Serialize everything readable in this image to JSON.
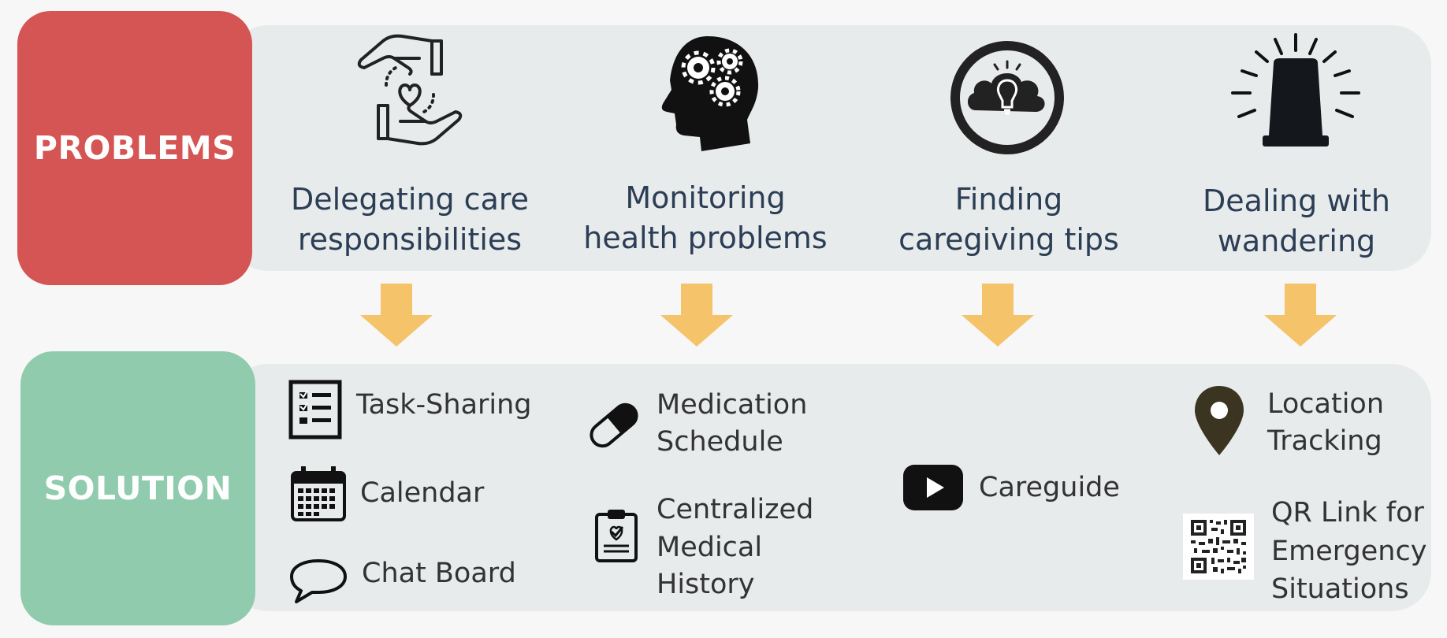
{
  "labels": {
    "problems": "PROBLEMS",
    "solution": "SOLUTION"
  },
  "problems": [
    {
      "line1": "Delegating care",
      "line2": "responsibilities",
      "icon": "caring-hands-heart-icon"
    },
    {
      "line1": "Monitoring",
      "line2": "health problems",
      "icon": "head-gears-icon"
    },
    {
      "line1": "Finding",
      "line2": "caregiving tips",
      "icon": "lightbulb-cloud-icon"
    },
    {
      "line1": "Dealing with",
      "line2": "wandering",
      "icon": "alarm-siren-icon"
    }
  ],
  "solutions": {
    "task_sharing": "Task-Sharing",
    "calendar": "Calendar",
    "chat_board": "Chat Board",
    "medication": {
      "line1": "Medication",
      "line2": "Schedule"
    },
    "medical_history": {
      "line1": "Centralized",
      "line2": "Medical",
      "line3": "History"
    },
    "careguide": "Careguide",
    "location": {
      "line1": "Location",
      "line2": "Tracking"
    },
    "qr_link": {
      "line1": "QR Link for",
      "line2": "Emergency",
      "line3": "Situations"
    }
  },
  "colors": {
    "problems_box": "#d55454",
    "solution_box": "#8fcbac",
    "band": "#e8ebec",
    "arrow": "#f5c46a",
    "text": "#2c3e55"
  }
}
